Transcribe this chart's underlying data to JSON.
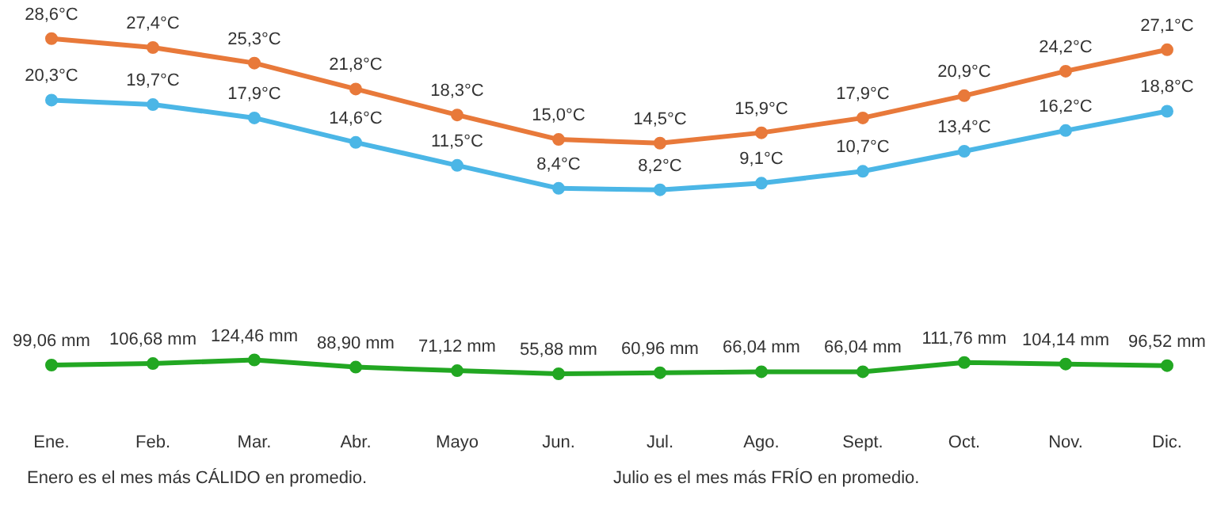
{
  "chart_data": [
    {
      "type": "line",
      "categories": [
        null,
        null,
        null,
        null,
        null,
        null,
        null,
        null,
        null,
        null,
        null,
        null
      ],
      "series": [
        {
          "color": "#e8793a",
          "values": [
            28.6,
            27.4,
            25.3,
            21.8,
            18.3,
            15.0,
            14.5,
            15.9,
            17.9,
            20.9,
            24.2,
            27.1
          ],
          "value_labels": [
            "28,6°C",
            "27,4°C",
            "25,3°C",
            "21,8°C",
            "18,3°C",
            "15,0°C",
            "14,5°C",
            "15,9°C",
            "17,9°C",
            "20,9°C",
            "24,2°C",
            "27,1°C"
          ]
        },
        {
          "color": "#4bb6e6",
          "values": [
            20.3,
            19.7,
            17.9,
            14.6,
            11.5,
            8.4,
            8.2,
            9.1,
            10.7,
            13.4,
            16.2,
            18.8
          ],
          "value_labels": [
            "20,3°C",
            "19,7°C",
            "17,9°C",
            "14,6°C",
            "11,5°C",
            "8,4°C",
            "8,2°C",
            "9,1°C",
            "10,7°C",
            "13,4°C",
            "16,2°C",
            "18,8°C"
          ]
        }
      ],
      "tick_labels": false,
      "grid": false,
      "marker": "circle",
      "line_style": "solid"
    },
    {
      "type": "line",
      "categories": [
        "Ene.",
        "Feb.",
        "Mar.",
        "Abr.",
        "Mayo",
        "Jun.",
        "Jul.",
        "Ago.",
        "Sept.",
        "Oct.",
        "Nov.",
        "Dic."
      ],
      "series": [
        {
          "color": "#22a722",
          "values": [
            99.06,
            106.68,
            124.46,
            88.9,
            71.12,
            55.88,
            60.96,
            66.04,
            66.04,
            111.76,
            104.14,
            96.52
          ],
          "value_labels": [
            "99,06 mm",
            "106,68 mm",
            "124,46 mm",
            "88,90 mm",
            "71,12 mm",
            "55,88 mm",
            "60,96 mm",
            "66,04 mm",
            "66,04 mm",
            "111,76 mm",
            "104,14 mm",
            "96,52 mm"
          ]
        }
      ],
      "tick_labels": "x",
      "grid": false,
      "marker": "circle",
      "line_style": "solid",
      "annotations": [
        "Enero es el mes más CÁLIDO en promedio.",
        "Julio es el mes más FRÍO en promedio."
      ]
    }
  ]
}
